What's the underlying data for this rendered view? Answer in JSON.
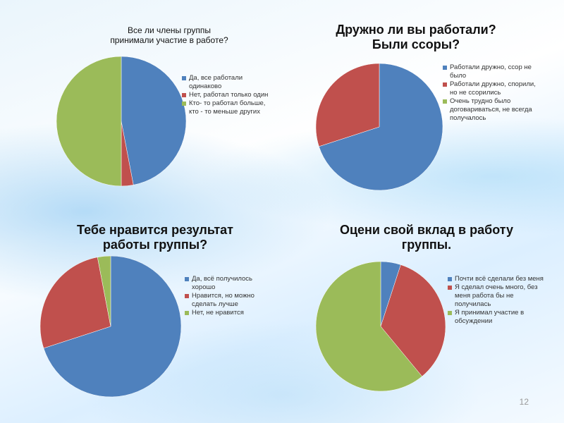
{
  "chart_data": [
    {
      "type": "pie",
      "title": "Все ли члены группы принимали участие в работе?",
      "categories": [
        "Да, все работали одинаково",
        "Нет, работал только один",
        "Кто- то работал больше, кто - то меньше других"
      ],
      "values": [
        47,
        3,
        50
      ],
      "colors": [
        "#4f81bd",
        "#c0504d",
        "#9bbb59"
      ]
    },
    {
      "type": "pie",
      "title": "Дружно ли вы работали? Были ссоры?",
      "categories": [
        "Работали дружно, ссор не было",
        "Работали дружно, спорили, но не ссорились",
        "Очень трудно было договариваться, не всегда получалось"
      ],
      "values": [
        70,
        30,
        0
      ],
      "colors": [
        "#4f81bd",
        "#c0504d",
        "#9bbb59"
      ]
    },
    {
      "type": "pie",
      "title": "Тебе нравится результат работы группы?",
      "categories": [
        "Да, всё получилось хорошо",
        "Нравится, но можно сделать лучше",
        "Нет, не нравится"
      ],
      "values": [
        70,
        27,
        3
      ],
      "colors": [
        "#4f81bd",
        "#c0504d",
        "#9bbb59"
      ]
    },
    {
      "type": "pie",
      "title": "Оцени свой вклад в работу группы.",
      "categories": [
        "Почти всё сделали без меня",
        "Я сделал очень много, без меня работа бы не получилась",
        "Я принимал участие в обсуждении"
      ],
      "values": [
        5,
        34,
        61
      ],
      "colors": [
        "#4f81bd",
        "#c0504d",
        "#9bbb59"
      ]
    }
  ],
  "page_number": "12"
}
